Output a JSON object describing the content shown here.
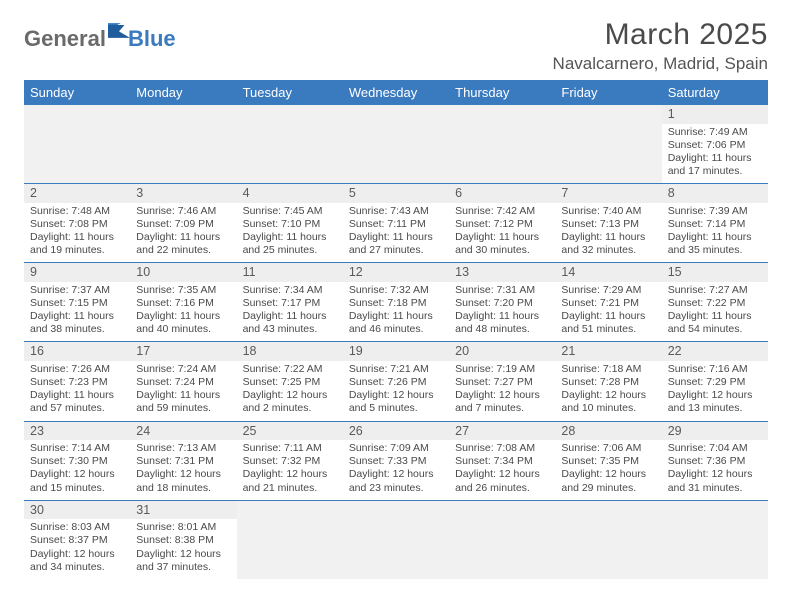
{
  "brand": {
    "part1": "General",
    "part2": "Blue"
  },
  "title": "March 2025",
  "location": "Navalcarnero, Madrid, Spain",
  "colors": {
    "header_bg": "#3a7abf",
    "header_text": "#ffffff",
    "daynum_bg": "#eeeeee",
    "empty_bg": "#f1f1f1",
    "border": "#3a7abf",
    "text": "#4a4a4a"
  },
  "dayHeaders": [
    "Sunday",
    "Monday",
    "Tuesday",
    "Wednesday",
    "Thursday",
    "Friday",
    "Saturday"
  ],
  "leadingBlanks": 6,
  "days": [
    {
      "n": 1,
      "sunrise": "7:49 AM",
      "sunset": "7:06 PM",
      "daylight": "11 hours and 17 minutes."
    },
    {
      "n": 2,
      "sunrise": "7:48 AM",
      "sunset": "7:08 PM",
      "daylight": "11 hours and 19 minutes."
    },
    {
      "n": 3,
      "sunrise": "7:46 AM",
      "sunset": "7:09 PM",
      "daylight": "11 hours and 22 minutes."
    },
    {
      "n": 4,
      "sunrise": "7:45 AM",
      "sunset": "7:10 PM",
      "daylight": "11 hours and 25 minutes."
    },
    {
      "n": 5,
      "sunrise": "7:43 AM",
      "sunset": "7:11 PM",
      "daylight": "11 hours and 27 minutes."
    },
    {
      "n": 6,
      "sunrise": "7:42 AM",
      "sunset": "7:12 PM",
      "daylight": "11 hours and 30 minutes."
    },
    {
      "n": 7,
      "sunrise": "7:40 AM",
      "sunset": "7:13 PM",
      "daylight": "11 hours and 32 minutes."
    },
    {
      "n": 8,
      "sunrise": "7:39 AM",
      "sunset": "7:14 PM",
      "daylight": "11 hours and 35 minutes."
    },
    {
      "n": 9,
      "sunrise": "7:37 AM",
      "sunset": "7:15 PM",
      "daylight": "11 hours and 38 minutes."
    },
    {
      "n": 10,
      "sunrise": "7:35 AM",
      "sunset": "7:16 PM",
      "daylight": "11 hours and 40 minutes."
    },
    {
      "n": 11,
      "sunrise": "7:34 AM",
      "sunset": "7:17 PM",
      "daylight": "11 hours and 43 minutes."
    },
    {
      "n": 12,
      "sunrise": "7:32 AM",
      "sunset": "7:18 PM",
      "daylight": "11 hours and 46 minutes."
    },
    {
      "n": 13,
      "sunrise": "7:31 AM",
      "sunset": "7:20 PM",
      "daylight": "11 hours and 48 minutes."
    },
    {
      "n": 14,
      "sunrise": "7:29 AM",
      "sunset": "7:21 PM",
      "daylight": "11 hours and 51 minutes."
    },
    {
      "n": 15,
      "sunrise": "7:27 AM",
      "sunset": "7:22 PM",
      "daylight": "11 hours and 54 minutes."
    },
    {
      "n": 16,
      "sunrise": "7:26 AM",
      "sunset": "7:23 PM",
      "daylight": "11 hours and 57 minutes."
    },
    {
      "n": 17,
      "sunrise": "7:24 AM",
      "sunset": "7:24 PM",
      "daylight": "11 hours and 59 minutes."
    },
    {
      "n": 18,
      "sunrise": "7:22 AM",
      "sunset": "7:25 PM",
      "daylight": "12 hours and 2 minutes."
    },
    {
      "n": 19,
      "sunrise": "7:21 AM",
      "sunset": "7:26 PM",
      "daylight": "12 hours and 5 minutes."
    },
    {
      "n": 20,
      "sunrise": "7:19 AM",
      "sunset": "7:27 PM",
      "daylight": "12 hours and 7 minutes."
    },
    {
      "n": 21,
      "sunrise": "7:18 AM",
      "sunset": "7:28 PM",
      "daylight": "12 hours and 10 minutes."
    },
    {
      "n": 22,
      "sunrise": "7:16 AM",
      "sunset": "7:29 PM",
      "daylight": "12 hours and 13 minutes."
    },
    {
      "n": 23,
      "sunrise": "7:14 AM",
      "sunset": "7:30 PM",
      "daylight": "12 hours and 15 minutes."
    },
    {
      "n": 24,
      "sunrise": "7:13 AM",
      "sunset": "7:31 PM",
      "daylight": "12 hours and 18 minutes."
    },
    {
      "n": 25,
      "sunrise": "7:11 AM",
      "sunset": "7:32 PM",
      "daylight": "12 hours and 21 minutes."
    },
    {
      "n": 26,
      "sunrise": "7:09 AM",
      "sunset": "7:33 PM",
      "daylight": "12 hours and 23 minutes."
    },
    {
      "n": 27,
      "sunrise": "7:08 AM",
      "sunset": "7:34 PM",
      "daylight": "12 hours and 26 minutes."
    },
    {
      "n": 28,
      "sunrise": "7:06 AM",
      "sunset": "7:35 PM",
      "daylight": "12 hours and 29 minutes."
    },
    {
      "n": 29,
      "sunrise": "7:04 AM",
      "sunset": "7:36 PM",
      "daylight": "12 hours and 31 minutes."
    },
    {
      "n": 30,
      "sunrise": "8:03 AM",
      "sunset": "8:37 PM",
      "daylight": "12 hours and 34 minutes."
    },
    {
      "n": 31,
      "sunrise": "8:01 AM",
      "sunset": "8:38 PM",
      "daylight": "12 hours and 37 minutes."
    }
  ],
  "labels": {
    "sunrise": "Sunrise:",
    "sunset": "Sunset:",
    "daylight": "Daylight:"
  }
}
